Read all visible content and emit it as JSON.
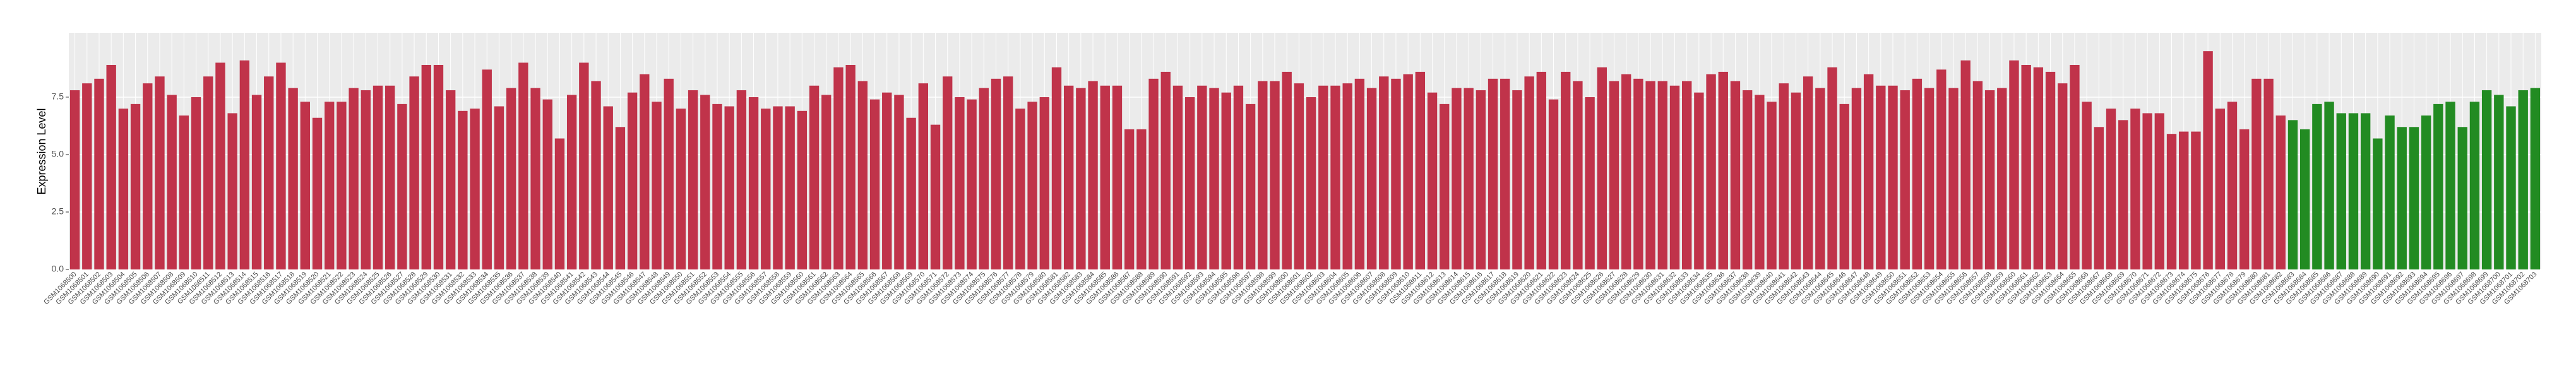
{
  "chart_data": {
    "type": "bar",
    "y_label": "Expression Level",
    "categories": [
      "GSM1068500",
      "GSM1068501",
      "GSM1068502",
      "GSM1068503",
      "GSM1068504",
      "GSM1068505",
      "GSM1068506",
      "GSM1068507",
      "GSM1068508",
      "GSM1068509",
      "GSM1068510",
      "GSM1068511",
      "GSM1068512",
      "GSM1068513",
      "GSM1068514",
      "GSM1068515",
      "GSM1068516",
      "GSM1068517",
      "GSM1068518",
      "GSM1068519",
      "GSM1068520",
      "GSM1068521",
      "GSM1068522",
      "GSM1068523",
      "GSM1068524",
      "GSM1068525",
      "GSM1068526",
      "GSM1068527",
      "GSM1068528",
      "GSM1068529",
      "GSM1068530",
      "GSM1068531",
      "GSM1068532",
      "GSM1068533",
      "GSM1068534",
      "GSM1068535",
      "GSM1068536",
      "GSM1068537",
      "GSM1068538",
      "GSM1068539",
      "GSM1068540",
      "GSM1068541",
      "GSM1068542",
      "GSM1068543",
      "GSM1068544",
      "GSM1068545",
      "GSM1068546",
      "GSM1068547",
      "GSM1068548",
      "GSM1068549",
      "GSM1068550",
      "GSM1068551",
      "GSM1068552",
      "GSM1068553",
      "GSM1068554",
      "GSM1068555",
      "GSM1068556",
      "GSM1068557",
      "GSM1068558",
      "GSM1068559",
      "GSM1068560",
      "GSM1068561",
      "GSM1068562",
      "GSM1068563",
      "GSM1068564",
      "GSM1068565",
      "GSM1068566",
      "GSM1068567",
      "GSM1068568",
      "GSM1068569",
      "GSM1068570",
      "GSM1068571",
      "GSM1068572",
      "GSM1068573",
      "GSM1068574",
      "GSM1068575",
      "GSM1068576",
      "GSM1068577",
      "GSM1068578",
      "GSM1068579",
      "GSM1068580",
      "GSM1068581",
      "GSM1068582",
      "GSM1068583",
      "GSM1068584",
      "GSM1068585",
      "GSM1068586",
      "GSM1068587",
      "GSM1068588",
      "GSM1068589",
      "GSM1068590",
      "GSM1068591",
      "GSM1068592",
      "GSM1068593",
      "GSM1068594",
      "GSM1068595",
      "GSM1068596",
      "GSM1068597",
      "GSM1068598",
      "GSM1068599",
      "GSM1068600",
      "GSM1068601",
      "GSM1068602",
      "GSM1068603",
      "GSM1068604",
      "GSM1068605",
      "GSM1068606",
      "GSM1068607",
      "GSM1068608",
      "GSM1068609",
      "GSM1068610",
      "GSM1068611",
      "GSM1068612",
      "GSM1068613",
      "GSM1068614",
      "GSM1068615",
      "GSM1068616",
      "GSM1068617",
      "GSM1068618",
      "GSM1068619",
      "GSM1068620",
      "GSM1068621",
      "GSM1068622",
      "GSM1068623",
      "GSM1068624",
      "GSM1068625",
      "GSM1068626",
      "GSM1068627",
      "GSM1068628",
      "GSM1068629",
      "GSM1068630",
      "GSM1068631",
      "GSM1068632",
      "GSM1068633",
      "GSM1068634",
      "GSM1068635",
      "GSM1068636",
      "GSM1068637",
      "GSM1068638",
      "GSM1068639",
      "GSM1068640",
      "GSM1068641",
      "GSM1068642",
      "GSM1068643",
      "GSM1068644",
      "GSM1068645",
      "GSM1068646",
      "GSM1068647",
      "GSM1068648",
      "GSM1068649",
      "GSM1068650",
      "GSM1068651",
      "GSM1068652",
      "GSM1068653",
      "GSM1068654",
      "GSM1068655",
      "GSM1068656",
      "GSM1068657",
      "GSM1068658",
      "GSM1068659",
      "GSM1068660",
      "GSM1068661",
      "GSM1068662",
      "GSM1068663",
      "GSM1068664",
      "GSM1068665",
      "GSM1068666",
      "GSM1068667",
      "GSM1068668",
      "GSM1068669",
      "GSM1068670",
      "GSM1068671",
      "GSM1068672",
      "GSM1068673",
      "GSM1068674",
      "GSM1068675",
      "GSM1068676",
      "GSM1068677",
      "GSM1068678",
      "GSM1068679",
      "GSM1068680",
      "GSM1068681",
      "GSM1068682",
      "GSM1068683",
      "GSM1068684",
      "GSM1068685",
      "GSM1068686",
      "GSM1068687",
      "GSM1068688",
      "GSM1068689",
      "GSM1068690",
      "GSM1068691",
      "GSM1068692",
      "GSM1068693",
      "GSM1068694",
      "GSM1068695",
      "GSM1068696",
      "GSM1068697",
      "GSM1068698",
      "GSM1068699",
      "GSM1068700",
      "GSM1068701",
      "GSM1068702",
      "GSM1068703"
    ],
    "series": [
      {
        "color": "#c0334a",
        "values": [
          7.8,
          8.1,
          8.3,
          8.9,
          7.0,
          7.2,
          8.1,
          8.4,
          7.6,
          6.7,
          7.5,
          8.4,
          9.0,
          6.8,
          9.1,
          7.6,
          8.4,
          9.0,
          7.9,
          7.3,
          6.6,
          7.3,
          7.3,
          7.9,
          7.8,
          8.0,
          8.0,
          7.2,
          8.4,
          8.9,
          8.9,
          7.8,
          6.9,
          7.0,
          8.7,
          7.1,
          7.9,
          9.0,
          7.9,
          7.4,
          5.7,
          7.6,
          9.0,
          8.2,
          7.1,
          6.2,
          7.7,
          8.5,
          7.3,
          8.3,
          7.0,
          7.8,
          7.6,
          7.2,
          7.1,
          7.8,
          7.5,
          7.0,
          7.1,
          7.1,
          6.9,
          8.0,
          7.6,
          8.8,
          8.9,
          8.2,
          7.4,
          7.7,
          7.6,
          6.6,
          8.1,
          6.3,
          8.4,
          7.5,
          7.4,
          7.9,
          8.3,
          8.4,
          7.0,
          7.3,
          7.5,
          8.8,
          8.0,
          7.9,
          8.2,
          8.0,
          8.0,
          6.1,
          6.1,
          8.3,
          8.6,
          8.0,
          7.5,
          8.0,
          7.9,
          7.7,
          8.0,
          7.2,
          8.2,
          8.2,
          8.6,
          8.1,
          7.5,
          8.0,
          8.0,
          8.1,
          8.3,
          7.9,
          8.4,
          8.3,
          8.5,
          8.6,
          7.7,
          7.2,
          7.9,
          7.9,
          7.8,
          8.3,
          8.3,
          7.8,
          8.4,
          8.6,
          7.4,
          8.6,
          8.2,
          7.5,
          8.8,
          8.2,
          8.5,
          8.3,
          8.2,
          8.2,
          8.0,
          8.2,
          7.7,
          8.5,
          8.6,
          8.2,
          7.8,
          7.6,
          7.3,
          8.1,
          7.7,
          8.4,
          7.9,
          8.8,
          7.2,
          7.9,
          8.5,
          8.0,
          8.0,
          7.8,
          8.3,
          7.9,
          8.7,
          7.9,
          9.1,
          8.2,
          7.8,
          7.9,
          9.1,
          8.9,
          8.8,
          8.6,
          8.1,
          8.9,
          7.3,
          6.2,
          7.0,
          6.5,
          7.0,
          6.8,
          6.8,
          5.9,
          6.0,
          6.0,
          9.5,
          7.0,
          7.3,
          6.1,
          8.3,
          8.3,
          6.7,
          null,
          null,
          null,
          null,
          null,
          null,
          null,
          null,
          null,
          null,
          null,
          null,
          null,
          null,
          null,
          null,
          null,
          null,
          null,
          null,
          null
        ]
      },
      {
        "color": "#228b22",
        "values": [
          null,
          null,
          null,
          null,
          null,
          null,
          null,
          null,
          null,
          null,
          null,
          null,
          null,
          null,
          null,
          null,
          null,
          null,
          null,
          null,
          null,
          null,
          null,
          null,
          null,
          null,
          null,
          null,
          null,
          null,
          null,
          null,
          null,
          null,
          null,
          null,
          null,
          null,
          null,
          null,
          null,
          null,
          null,
          null,
          null,
          null,
          null,
          null,
          null,
          null,
          null,
          null,
          null,
          null,
          null,
          null,
          null,
          null,
          null,
          null,
          null,
          null,
          null,
          null,
          null,
          null,
          null,
          null,
          null,
          null,
          null,
          null,
          null,
          null,
          null,
          null,
          null,
          null,
          null,
          null,
          null,
          null,
          null,
          null,
          null,
          null,
          null,
          null,
          null,
          null,
          null,
          null,
          null,
          null,
          null,
          null,
          null,
          null,
          null,
          null,
          null,
          null,
          null,
          null,
          null,
          null,
          null,
          null,
          null,
          null,
          null,
          null,
          null,
          null,
          null,
          null,
          null,
          null,
          null,
          null,
          null,
          null,
          null,
          null,
          null,
          null,
          null,
          null,
          null,
          null,
          null,
          null,
          null,
          null,
          null,
          null,
          null,
          null,
          null,
          null,
          null,
          null,
          null,
          null,
          null,
          null,
          null,
          null,
          null,
          null,
          null,
          null,
          null,
          null,
          null,
          null,
          null,
          null,
          null,
          null,
          null,
          null,
          null,
          null,
          null,
          null,
          null,
          null,
          null,
          null,
          null,
          null,
          null,
          null,
          null,
          null,
          null,
          null,
          null,
          null,
          null,
          null,
          null,
          6.5,
          6.1,
          7.2,
          7.3,
          6.8,
          6.8,
          6.8,
          5.7,
          6.7,
          6.2,
          6.2,
          6.7,
          7.2,
          7.3,
          6.2,
          7.3,
          7.8,
          7.6,
          7.1,
          7.8,
          7.9
        ]
      }
    ],
    "ylim": [
      0,
      10.3
    ],
    "yticks": [
      {
        "value": 0,
        "label": "0.0"
      },
      2.5,
      {
        "value": 5,
        "label": "5.0"
      },
      7.5
    ],
    "grid": true
  }
}
